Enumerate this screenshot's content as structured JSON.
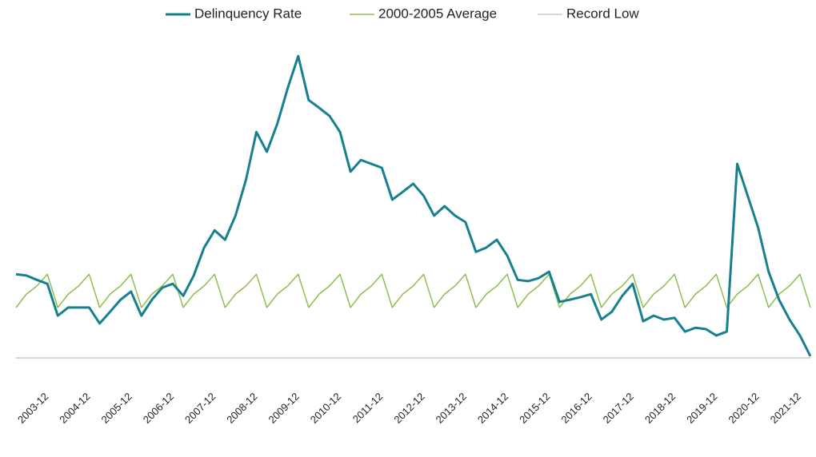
{
  "chart_data": {
    "type": "line",
    "categories": [
      null,
      null,
      null,
      "2003-12",
      null,
      null,
      null,
      "2004-12",
      null,
      null,
      null,
      "2005-12",
      null,
      null,
      null,
      "2006-12",
      null,
      null,
      null,
      "2007-12",
      null,
      null,
      null,
      "2008-12",
      null,
      null,
      null,
      "2009-12",
      null,
      null,
      null,
      "2010-12",
      null,
      null,
      null,
      "2011-12",
      null,
      null,
      null,
      "2012-12",
      null,
      null,
      null,
      "2013-12",
      null,
      null,
      null,
      "2014-12",
      null,
      null,
      null,
      "2015-12",
      null,
      null,
      null,
      "2016-12",
      null,
      null,
      null,
      "2017-12",
      null,
      null,
      null,
      "2018-12",
      null,
      null,
      null,
      "2019-12",
      null,
      null,
      null,
      "2020-12",
      null,
      null,
      null,
      "2021-12",
      null
    ],
    "series": [
      {
        "name": "Delinquency Rate",
        "color": "#17808f",
        "width": 3,
        "values": [
          4.94,
          4.91,
          4.81,
          4.72,
          3.98,
          4.17,
          4.17,
          4.17,
          3.8,
          4.07,
          4.35,
          4.54,
          3.98,
          4.35,
          4.63,
          4.72,
          4.44,
          4.91,
          5.56,
          5.96,
          5.74,
          6.3,
          7.13,
          8.24,
          7.78,
          8.43,
          9.26,
          10.0,
          8.98,
          8.8,
          8.61,
          8.24,
          7.32,
          7.59,
          7.5,
          7.41,
          6.67,
          6.85,
          7.04,
          6.76,
          6.3,
          6.52,
          6.3,
          6.15,
          5.46,
          5.56,
          5.74,
          5.37,
          4.81,
          4.78,
          4.85,
          5.0,
          4.3,
          4.35,
          4.41,
          4.48,
          3.89,
          4.07,
          4.44,
          4.72,
          3.85,
          3.98,
          3.89,
          3.93,
          3.61,
          3.7,
          3.67,
          3.52,
          3.61,
          7.5,
          6.76,
          6.02,
          5.0,
          4.35,
          3.89,
          3.52,
          3.04
        ]
      },
      {
        "name": "2000-2005 Average",
        "color": "#8dbf4c",
        "width": 1.5,
        "values": [
          4.17,
          4.48,
          4.67,
          4.94,
          4.17,
          4.48,
          4.67,
          4.94,
          4.17,
          4.48,
          4.67,
          4.94,
          4.17,
          4.48,
          4.67,
          4.94,
          4.17,
          4.48,
          4.67,
          4.94,
          4.17,
          4.48,
          4.67,
          4.94,
          4.17,
          4.48,
          4.67,
          4.94,
          4.17,
          4.48,
          4.67,
          4.94,
          4.17,
          4.48,
          4.67,
          4.94,
          4.17,
          4.48,
          4.67,
          4.94,
          4.17,
          4.48,
          4.67,
          4.94,
          4.17,
          4.48,
          4.67,
          4.94,
          4.17,
          4.48,
          4.67,
          4.94,
          4.17,
          4.48,
          4.67,
          4.94,
          4.17,
          4.48,
          4.67,
          4.94,
          4.17,
          4.48,
          4.67,
          4.94,
          4.17,
          4.48,
          4.67,
          4.94,
          4.17,
          4.48,
          4.67,
          4.94,
          4.17,
          4.48,
          4.67,
          4.94,
          4.17
        ]
      },
      {
        "name": "Record Low",
        "color": "#bdbdbd",
        "width": 1.2,
        "values": [
          3.0,
          3.0,
          3.0,
          3.0,
          3.0,
          3.0,
          3.0,
          3.0,
          3.0,
          3.0,
          3.0,
          3.0,
          3.0,
          3.0,
          3.0,
          3.0,
          3.0,
          3.0,
          3.0,
          3.0,
          3.0,
          3.0,
          3.0,
          3.0,
          3.0,
          3.0,
          3.0,
          3.0,
          3.0,
          3.0,
          3.0,
          3.0,
          3.0,
          3.0,
          3.0,
          3.0,
          3.0,
          3.0,
          3.0,
          3.0,
          3.0,
          3.0,
          3.0,
          3.0,
          3.0,
          3.0,
          3.0,
          3.0,
          3.0,
          3.0,
          3.0,
          3.0,
          3.0,
          3.0,
          3.0,
          3.0,
          3.0,
          3.0,
          3.0,
          3.0,
          3.0,
          3.0,
          3.0,
          3.0,
          3.0,
          3.0,
          3.0,
          3.0,
          3.0,
          3.0,
          3.0,
          3.0,
          3.0,
          3.0,
          3.0,
          3.0,
          3.0
        ]
      }
    ],
    "ylim": [
      2.5,
      10.8
    ],
    "legend": "top"
  }
}
